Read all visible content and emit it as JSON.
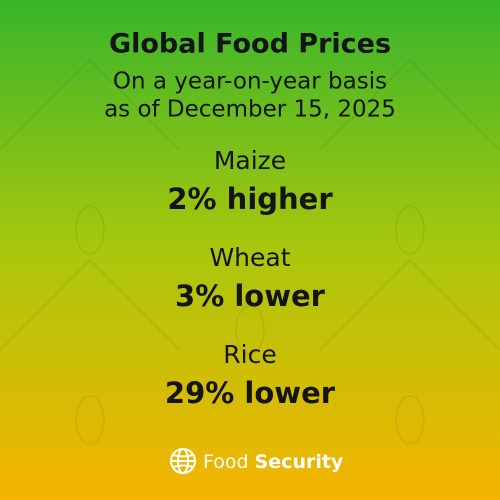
{
  "header": {
    "title": "Global Food Prices",
    "subtitle_lines": [
      "On a year-on-year basis",
      "as of December 15, 2025"
    ]
  },
  "items": [
    {
      "name": "Maize",
      "change": "2% higher"
    },
    {
      "name": "Wheat",
      "change": "3% lower"
    },
    {
      "name": "Rice",
      "change": "29% lower"
    }
  ],
  "footer": {
    "brand_regular": "Food",
    "brand_bold": "Security"
  }
}
